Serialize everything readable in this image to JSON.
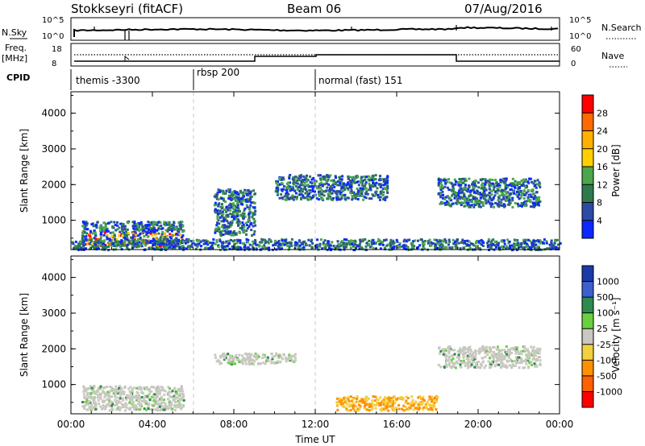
{
  "header": {
    "radar": "Stokkseyri (fitACF)",
    "beam": "Beam 06",
    "date": "07/Aug/2016"
  },
  "noise_panel": {
    "left_label": "N.Sky",
    "right_label": "N.Search",
    "left_ticks": [
      "10^5",
      "10^0"
    ],
    "right_ticks": [
      "10^5",
      "10^0"
    ]
  },
  "freq_panel": {
    "left_label_1": "Freq.",
    "left_label_2": "[MHz]",
    "right_label": "Nave",
    "left_ticks": [
      "18",
      "8"
    ],
    "right_ticks": [
      "60",
      "0"
    ]
  },
  "cpid_panel": {
    "label": "CPID",
    "segments": [
      "themis -3300",
      "rbsp 200",
      "normal (fast) 151"
    ]
  },
  "chart_data": [
    {
      "type": "heatmap",
      "name": "Power",
      "ylabel": "Slant Range [km]",
      "yticks": [
        "4000",
        "3000",
        "2000",
        "1000"
      ],
      "xticks": [
        "00:00",
        "04:00",
        "08:00",
        "12:00",
        "16:00",
        "20:00",
        "00:00"
      ],
      "colorbar_label": "Power [dB]",
      "colorbar_ticks": [
        "28",
        "24",
        "20",
        "16",
        "12",
        "8",
        "4"
      ],
      "colorbar_colors": [
        "#ff0000",
        "#ff6a00",
        "#ffb000",
        "#ffd000",
        "#4aa84a",
        "#2e7a4e",
        "#2c4aa6",
        "#0a28ff"
      ],
      "ylim": [
        180,
        4600
      ],
      "xlim_hours": [
        0,
        24
      ],
      "cpid_boundaries_ut": [
        "06:00",
        "12:00"
      ],
      "features": [
        {
          "time_ut": [
            "00:30",
            "05:30"
          ],
          "range_km": [
            300,
            1000
          ],
          "level_db": "4-28"
        },
        {
          "time_ut": [
            "07:00",
            "09:00"
          ],
          "range_km": [
            600,
            1900
          ],
          "level_db": "4-12"
        },
        {
          "time_ut": [
            "10:00",
            "15:30"
          ],
          "range_km": [
            1600,
            2300
          ],
          "level_db": "4-16"
        },
        {
          "time_ut": [
            "18:00",
            "23:00"
          ],
          "range_km": [
            1400,
            2200
          ],
          "level_db": "4-20"
        },
        {
          "time_ut": [
            "00:00",
            "24:00"
          ],
          "range_km": [
            200,
            500
          ],
          "level_db": "4-24"
        }
      ]
    },
    {
      "type": "heatmap",
      "name": "Velocity",
      "ylabel": "Slant Range [km]",
      "yticks": [
        "4000",
        "3000",
        "2000",
        "1000"
      ],
      "xticks": [
        "00:00",
        "04:00",
        "08:00",
        "12:00",
        "16:00",
        "20:00",
        "00:00"
      ],
      "xlabel": "Time UT",
      "colorbar_label": "Velocity [m s⁻¹]",
      "colorbar_ticks": [
        "1000",
        "500",
        "100",
        "25",
        "-25",
        "-100",
        "-500",
        "-1000"
      ],
      "colorbar_colors": [
        "#1a3aa8",
        "#3c5fd0",
        "#2e8a4e",
        "#6ad040",
        "#c8c8c0",
        "#f2d040",
        "#ff9000",
        "#ff6000",
        "#ff0000"
      ],
      "ylim": [
        180,
        4600
      ],
      "xlim_hours": [
        0,
        24
      ],
      "cpid_boundaries_ut": [
        "06:00",
        "12:00"
      ],
      "features": [
        {
          "time_ut": [
            "00:30",
            "05:30"
          ],
          "range_km": [
            300,
            1000
          ],
          "velocity_ms": "-25 to 25 with green 100-500"
        },
        {
          "time_ut": [
            "07:00",
            "11:00"
          ],
          "range_km": [
            1600,
            1900
          ],
          "velocity_ms": "-25 to 25"
        },
        {
          "time_ut": [
            "13:00",
            "18:00"
          ],
          "range_km": [
            300,
            700
          ],
          "velocity_ms": "-100 to -500"
        },
        {
          "time_ut": [
            "18:00",
            "23:00"
          ],
          "range_km": [
            1500,
            2100
          ],
          "velocity_ms": "-25 to 25"
        }
      ]
    }
  ]
}
